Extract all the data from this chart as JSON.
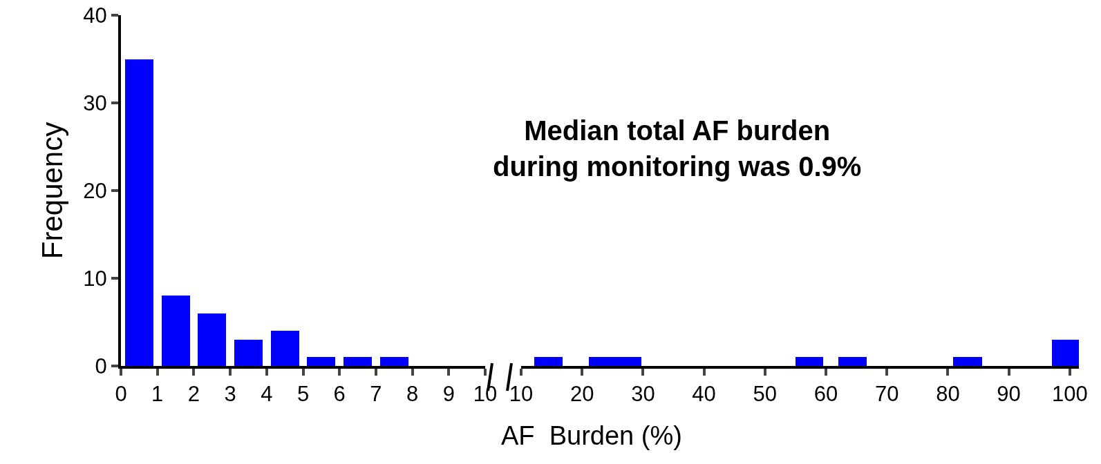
{
  "chart_data": [
    {
      "type": "histogram",
      "ylabel": "Frequency",
      "bins": [
        0,
        1,
        2,
        3,
        4,
        5,
        6,
        7,
        8,
        9,
        10
      ],
      "values": [
        35,
        8,
        6,
        3,
        4,
        1,
        1,
        1,
        0,
        0
      ],
      "color": "#0000ff",
      "xlim": [
        0,
        10
      ],
      "xticks": [
        0,
        1,
        2,
        3,
        4,
        5,
        6,
        7,
        8,
        9,
        10
      ],
      "ylim": [
        0,
        40
      ],
      "yticks": [
        0,
        10,
        20,
        30,
        40
      ],
      "grid": false
    },
    {
      "type": "histogram",
      "xlabel": "AF  Burden (%)",
      "annotations": [
        "Median total AF burden\nduring monitoring was 0.9%"
      ],
      "bins": [
        12.1,
        16.8,
        21.1,
        29.7,
        55,
        59.6,
        62,
        66.7,
        80.9,
        85.6,
        97.1,
        101.5
      ],
      "values": [
        1,
        0,
        1,
        0,
        1,
        0,
        1,
        0,
        1,
        0,
        3
      ],
      "color": "#0000ff",
      "xlim": [
        10,
        101.5
      ],
      "xticks": [
        10,
        20,
        30,
        40,
        50,
        60,
        70,
        80,
        90,
        100
      ],
      "ylim": [
        0,
        40
      ],
      "tick_labels": "x",
      "grid": false
    }
  ]
}
